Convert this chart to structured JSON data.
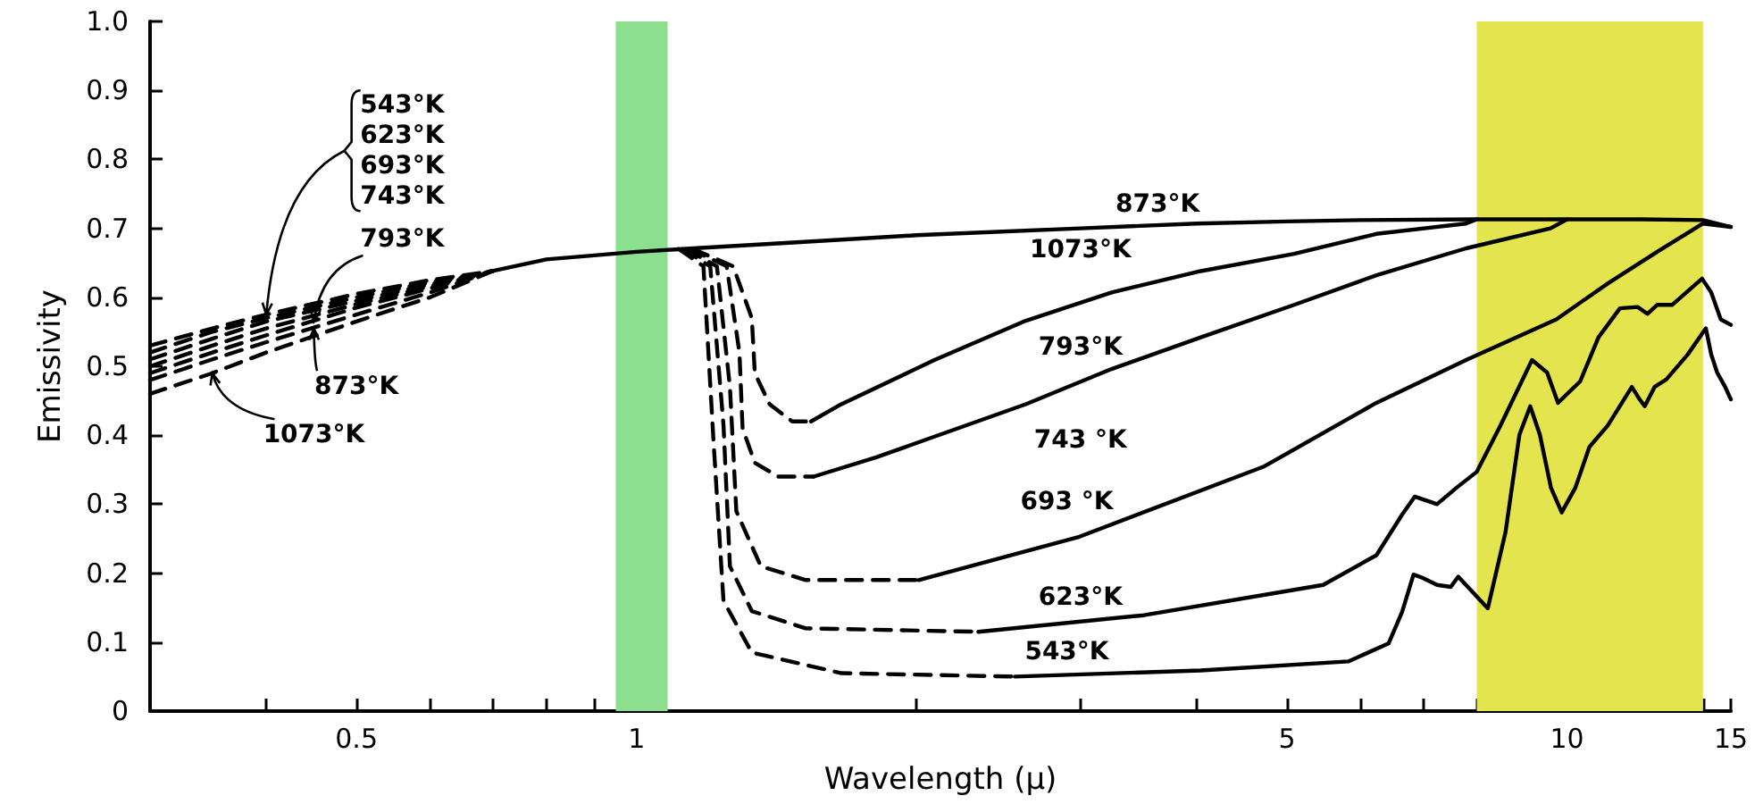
{
  "chart_data": {
    "type": "line",
    "xlabel": "Wavelength (μ)",
    "ylabel": "Emissivity",
    "log": "x",
    "grid": false,
    "marker": "none",
    "legend": false,
    "xlim": [
      0.3,
      15
    ],
    "xticks": [
      {
        "value": 0.4,
        "label": null
      },
      0.5,
      {
        "value": 0.6,
        "label": null
      },
      {
        "value": 0.7,
        "label": null
      },
      {
        "value": 0.8,
        "label": null
      },
      {
        "value": 0.9,
        "label": null
      },
      1,
      {
        "value": 2,
        "label": null
      },
      {
        "value": 3,
        "label": null
      },
      {
        "value": 4,
        "label": null
      },
      5,
      {
        "value": 6,
        "label": null
      },
      {
        "value": 7,
        "label": null
      },
      {
        "value": 8,
        "label": null
      },
      {
        "value": 9,
        "label": null
      },
      10,
      {
        "value": 11,
        "label": null
      },
      {
        "value": 12,
        "label": null
      },
      {
        "value": 13,
        "label": null
      },
      {
        "value": 14,
        "label": null
      },
      15
    ],
    "ylim": [
      0,
      1
    ],
    "yticks": [
      0,
      0.1,
      0.2,
      0.3,
      0.4,
      0.5,
      0.6,
      0.7,
      0.8,
      0.9,
      {
        "value": 1,
        "label": "1.0"
      }
    ],
    "bands": [
      {
        "axis": "x",
        "from": 0.95,
        "to": 1.08,
        "color": "#8cdf8f"
      },
      {
        "axis": "x",
        "from": 8,
        "to": 14,
        "color": "#e4e44f"
      }
    ],
    "series": [
      {
        "color": "#000000",
        "line_style": "solid",
        "x": [
          0.7,
          0.8,
          1,
          1.15,
          1.5,
          2,
          3,
          4,
          5,
          6,
          8,
          10,
          12,
          14,
          15
        ],
        "values": [
          0.638,
          0.655,
          0.666,
          0.671,
          0.68,
          0.69,
          0.7,
          0.707,
          0.71,
          0.712,
          0.713,
          0.713,
          0.713,
          0.712,
          0.702
        ]
      },
      {
        "color": "#000000",
        "line_style": "dashed",
        "x": [
          0.3,
          0.35,
          0.4,
          0.5,
          0.6,
          0.7
        ],
        "values": [
          0.53,
          0.555,
          0.575,
          0.605,
          0.625,
          0.638
        ]
      },
      {
        "color": "#000000",
        "line_style": "dashed",
        "x": [
          0.3,
          0.35,
          0.4,
          0.5,
          0.6,
          0.7
        ],
        "values": [
          0.52,
          0.55,
          0.57,
          0.6,
          0.622,
          0.638
        ]
      },
      {
        "color": "#000000",
        "line_style": "dashed",
        "x": [
          0.3,
          0.35,
          0.4,
          0.5,
          0.6,
          0.7
        ],
        "values": [
          0.51,
          0.54,
          0.565,
          0.595,
          0.619,
          0.638
        ]
      },
      {
        "color": "#000000",
        "line_style": "dashed",
        "x": [
          0.3,
          0.35,
          0.4,
          0.5,
          0.6,
          0.7
        ],
        "values": [
          0.5,
          0.53,
          0.555,
          0.59,
          0.616,
          0.638
        ]
      },
      {
        "color": "#000000",
        "line_style": "dashed",
        "x": [
          0.3,
          0.35,
          0.4,
          0.5,
          0.6,
          0.7
        ],
        "values": [
          0.49,
          0.52,
          0.545,
          0.585,
          0.613,
          0.638
        ]
      },
      {
        "color": "#000000",
        "line_style": "dashed",
        "x": [
          0.3,
          0.35,
          0.4,
          0.5,
          0.6,
          0.7
        ],
        "values": [
          0.48,
          0.51,
          0.535,
          0.575,
          0.607,
          0.638
        ]
      },
      {
        "color": "#000000",
        "line_style": "dashed",
        "x": [
          0.3,
          0.35,
          0.4,
          0.5,
          0.6,
          0.7
        ],
        "values": [
          0.46,
          0.49,
          0.52,
          0.565,
          0.6,
          0.638
        ]
      },
      {
        "color": "#000000",
        "line_style": "dashed",
        "x": [
          1.15,
          1.27,
          1.33,
          1.34,
          1.39,
          1.47,
          1.54
        ],
        "values": [
          0.67,
          0.645,
          0.57,
          0.49,
          0.445,
          0.42,
          0.42
        ]
      },
      {
        "color": "#000000",
        "line_style": "dashed",
        "x": [
          1.14,
          1.25,
          1.29,
          1.3,
          1.34,
          1.42,
          1.55
        ],
        "values": [
          0.67,
          0.645,
          0.52,
          0.41,
          0.36,
          0.34,
          0.34
        ]
      },
      {
        "color": "#000000",
        "line_style": "dashed",
        "x": [
          1.13,
          1.22,
          1.26,
          1.28,
          1.36,
          1.52,
          2.01
        ],
        "values": [
          0.67,
          0.645,
          0.47,
          0.29,
          0.21,
          0.19,
          0.19
        ]
      },
      {
        "color": "#000000",
        "line_style": "dashed",
        "x": [
          1.12,
          1.2,
          1.24,
          1.26,
          1.33,
          1.52,
          2.33
        ],
        "values": [
          0.67,
          0.645,
          0.415,
          0.21,
          0.145,
          0.12,
          0.115
        ]
      },
      {
        "color": "#000000",
        "line_style": "dashed",
        "x": [
          1.11,
          1.18,
          1.21,
          1.24,
          1.33,
          1.66,
          2.55
        ],
        "values": [
          0.67,
          0.645,
          0.39,
          0.16,
          0.085,
          0.055,
          0.05
        ]
      },
      {
        "color": "#000000",
        "line_style": "solid",
        "x": [
          1.54,
          1.66,
          2.09,
          2.62,
          3.24,
          4.04,
          5.09,
          6.24,
          7.79,
          8
        ],
        "values": [
          0.42,
          0.445,
          0.509,
          0.566,
          0.607,
          0.638,
          0.663,
          0.692,
          0.707,
          0.713
        ]
      },
      {
        "color": "#000000",
        "line_style": "solid",
        "x": [
          1.55,
          1.81,
          2.62,
          3.24,
          4.04,
          5.09,
          6.24,
          7.79,
          9.6,
          10
        ],
        "values": [
          0.34,
          0.368,
          0.445,
          0.496,
          0.542,
          0.589,
          0.632,
          0.671,
          0.7,
          0.713
        ]
      },
      {
        "color": "#000000",
        "line_style": "solid",
        "x": [
          2.01,
          2.98,
          4.73,
          6.24,
          7.79,
          9.74,
          11.06,
          12.5,
          14,
          15
        ],
        "values": [
          0.19,
          0.252,
          0.355,
          0.447,
          0.509,
          0.568,
          0.62,
          0.666,
          0.707,
          0.702
        ]
      },
      {
        "color": "#000000",
        "line_style": "solid",
        "x": [
          2.33,
          3.51,
          5.47,
          6.24,
          6.65,
          6.86,
          7.25,
          7.61,
          8,
          8.48,
          9.17,
          9.52,
          9.78,
          10.33,
          10.81,
          11.4,
          11.91,
          12.2,
          12.5,
          12.97,
          13.97,
          14.29,
          14.63,
          15
        ],
        "values": [
          0.115,
          0.139,
          0.183,
          0.226,
          0.285,
          0.311,
          0.3,
          0.324,
          0.347,
          0.414,
          0.509,
          0.491,
          0.447,
          0.478,
          0.542,
          0.584,
          0.586,
          0.576,
          0.589,
          0.589,
          0.627,
          0.607,
          0.568,
          0.56
        ]
      },
      {
        "color": "#000000",
        "line_style": "solid",
        "x": [
          2.55,
          4.04,
          5.82,
          6.43,
          6.65,
          6.84,
          7,
          7.25,
          7.5,
          7.64,
          7.86,
          8.22,
          8.59,
          8.89,
          9.13,
          9.35,
          9.61,
          9.87,
          10.21,
          10.57,
          11.06,
          11.74,
          11.97,
          12.12,
          12.42,
          12.79,
          13.48,
          14.1,
          14.29,
          14.5,
          14.79,
          15
        ],
        "values": [
          0.05,
          0.059,
          0.072,
          0.098,
          0.144,
          0.198,
          0.193,
          0.183,
          0.18,
          0.195,
          0.177,
          0.149,
          0.26,
          0.401,
          0.442,
          0.401,
          0.324,
          0.288,
          0.324,
          0.383,
          0.414,
          0.47,
          0.452,
          0.442,
          0.47,
          0.481,
          0.517,
          0.555,
          0.517,
          0.491,
          0.47,
          0.452
        ]
      }
    ],
    "annotations": [
      "873°K",
      "1073°K",
      "793°K",
      "743 °K",
      "693 °K",
      "623°K",
      "543°K",
      {
        "text": "543°K\n623°K\n693°K\n743°K",
        "x": 0.4,
        "y": 0.575
      },
      {
        "text": "793°K",
        "x": 0.45,
        "y": 0.565
      },
      {
        "text": "873°K",
        "x": 0.45,
        "y": 0.555
      },
      {
        "text": "1073°K",
        "x": 0.35,
        "y": 0.49
      }
    ]
  }
}
